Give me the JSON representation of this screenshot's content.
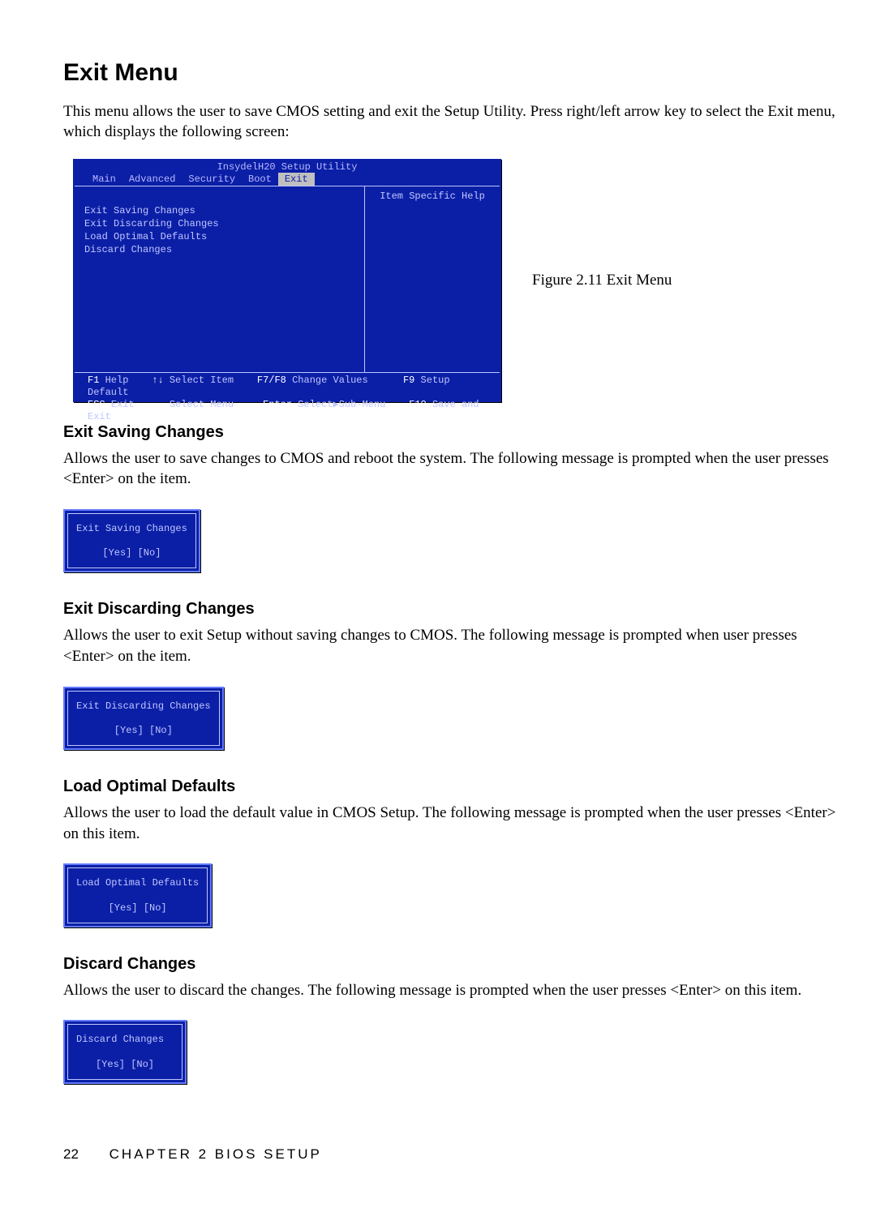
{
  "page": {
    "title": "Exit Menu",
    "intro": "This menu allows the user to save CMOS setting and exit the Setup Utility. Press right/left arrow key to select the Exit menu, which displays the following screen:",
    "figure_caption": "Figure 2.11 Exit Menu",
    "footer_page_num": "22",
    "footer_text": "CHAPTER 2 BIOS SETUP"
  },
  "bios": {
    "title": "InsydelH20 Setup Utility",
    "bg_color": "#0b1fa6",
    "text_color": "#c0c6ff",
    "accent_color": "#ffffff",
    "tab_active_bg": "#c0c0c0",
    "tabs": [
      "Main",
      "Advanced",
      "Security",
      "Boot",
      "Exit"
    ],
    "active_tab_index": 4,
    "help_header": "Item Specific Help",
    "menu_items": [
      "Exit Saving Changes",
      "Exit Discarding Changes",
      "Load Optimal Defaults",
      "Discard Changes"
    ],
    "footer": {
      "l1_k1": "F1",
      "l1_v1": "Help",
      "l1_k2": "↑↓",
      "l1_v2": "Select Item",
      "l1_k3": "F7/F8",
      "l1_v3": "Change Values",
      "l1_k4": "F9",
      "l1_v4": "Setup Default",
      "l2_k1": "ESC",
      "l2_v1": "Exit",
      "l2_k2": "↔",
      "l2_v2": "Select Menu",
      "l2_k3": "Enter",
      "l2_v3": "Select▶Sub-Menu",
      "l2_k4": "F10",
      "l2_v4": "Save and Exit"
    }
  },
  "dialog_options": {
    "yes": "[Yes]",
    "no": "[No]"
  },
  "sections": [
    {
      "heading": "Exit Saving Changes",
      "body": "Allows the user to save changes to CMOS and reboot the system. The following message is prompted when the user presses <Enter> on the item.",
      "dialog_title": "Exit Saving Changes"
    },
    {
      "heading": "Exit Discarding Changes",
      "body": "Allows the user to exit Setup without saving changes to CMOS. The following message is prompted when user presses <Enter> on the item.",
      "dialog_title": "Exit Discarding Changes"
    },
    {
      "heading": "Load Optimal Defaults",
      "body": "Allows the user to load the default value in CMOS Setup. The following message is prompted when the user presses <Enter> on this item.",
      "dialog_title": "Load Optimal Defaults"
    },
    {
      "heading": "Discard Changes",
      "body": "Allows the user to discard the changes. The following message is prompted when the user presses <Enter> on this item.",
      "dialog_title": "Discard Changes"
    }
  ]
}
